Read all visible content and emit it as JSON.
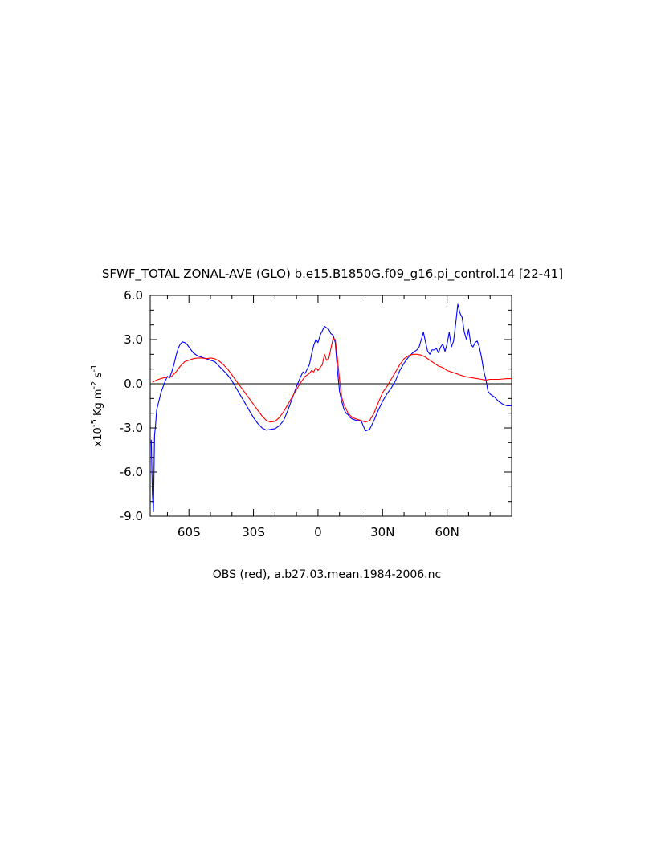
{
  "chart_data": {
    "type": "line",
    "title": "SFWF_TOTAL ZONAL-AVE (GLO) b.e15.B1850G.f09_g16.pi_control.14 [22-41]",
    "xlabel": "OBS (red), a.b27.03.mean.1984-2006.nc",
    "ylabel_prefix": "x10",
    "ylabel_exp": "-5",
    "ylabel_unit1": " Kg m",
    "ylabel_exp2": "-2",
    "ylabel_unit2": " s",
    "ylabel_exp3": "-1",
    "xlim": [
      -78,
      90
    ],
    "ylim": [
      -9,
      6
    ],
    "x_ticks": [
      {
        "value": -60,
        "label": "60S"
      },
      {
        "value": -30,
        "label": "30S"
      },
      {
        "value": 0,
        "label": "0"
      },
      {
        "value": 30,
        "label": "30N"
      },
      {
        "value": 60,
        "label": "60N"
      }
    ],
    "y_ticks": [
      {
        "value": 6,
        "label": "6.0"
      },
      {
        "value": 3,
        "label": "3.0"
      },
      {
        "value": 0,
        "label": "0.0"
      },
      {
        "value": -3,
        "label": "-3.0"
      },
      {
        "value": -6,
        "label": "-6.0"
      },
      {
        "value": -9,
        "label": "-9.0"
      }
    ],
    "zero_line": true,
    "series": [
      {
        "color": "#0000ff",
        "x": [
          -77.5,
          -77,
          -76.5,
          -76,
          -75.5,
          -75,
          -74,
          -73,
          -72,
          -71,
          -70,
          -69,
          -68,
          -67,
          -66,
          -65,
          -64,
          -63,
          -62,
          -61,
          -60,
          -59,
          -58,
          -56,
          -54,
          -52,
          -50,
          -48,
          -46,
          -44,
          -42,
          -40,
          -38,
          -36,
          -34,
          -32,
          -30,
          -28,
          -26,
          -24,
          -22,
          -20,
          -18,
          -16,
          -14,
          -12,
          -10,
          -8,
          -7,
          -6,
          -5,
          -4,
          -3,
          -2,
          -1,
          0,
          1,
          2,
          3,
          4,
          5,
          6,
          7,
          8,
          9,
          10,
          11,
          12,
          13,
          14,
          15,
          16,
          18,
          20,
          22,
          24,
          26,
          28,
          30,
          32,
          34,
          36,
          38,
          40,
          42,
          44,
          46,
          47,
          48,
          49,
          50,
          51,
          52,
          53,
          54,
          55,
          56,
          57,
          58,
          59,
          60,
          61,
          62,
          63,
          64,
          65,
          66,
          67,
          68,
          69,
          70,
          71,
          72,
          73,
          74,
          75,
          76,
          77,
          78,
          79,
          80,
          82,
          84,
          86,
          88,
          90
        ],
        "y": [
          -3.8,
          -7.5,
          -8.7,
          -3.5,
          -2.8,
          -1.8,
          -1.2,
          -0.6,
          -0.2,
          0.2,
          0.5,
          0.4,
          0.8,
          1.3,
          1.9,
          2.4,
          2.7,
          2.85,
          2.8,
          2.7,
          2.5,
          2.3,
          2.1,
          1.9,
          1.8,
          1.7,
          1.6,
          1.5,
          1.2,
          0.9,
          0.6,
          0.2,
          -0.3,
          -0.8,
          -1.3,
          -1.8,
          -2.3,
          -2.7,
          -3.0,
          -3.15,
          -3.1,
          -3.05,
          -2.85,
          -2.5,
          -1.8,
          -1.0,
          -0.2,
          0.5,
          0.8,
          0.7,
          1.0,
          1.3,
          2.0,
          2.6,
          3.0,
          2.8,
          3.3,
          3.6,
          3.9,
          3.8,
          3.7,
          3.4,
          3.3,
          2.8,
          1.0,
          -0.5,
          -1.2,
          -1.7,
          -2.0,
          -2.1,
          -2.3,
          -2.4,
          -2.5,
          -2.5,
          -3.2,
          -3.1,
          -2.5,
          -1.8,
          -1.2,
          -0.7,
          -0.3,
          0.2,
          0.9,
          1.4,
          1.8,
          2.1,
          2.3,
          2.5,
          3.0,
          3.5,
          2.8,
          2.2,
          2.0,
          2.3,
          2.3,
          2.4,
          2.1,
          2.5,
          2.7,
          2.2,
          2.7,
          3.5,
          2.5,
          2.9,
          4.1,
          5.4,
          4.8,
          4.5,
          3.5,
          3.0,
          3.7,
          2.7,
          2.5,
          2.8,
          2.9,
          2.5,
          1.8,
          0.9,
          0.3,
          -0.5,
          -0.7,
          -0.9,
          -1.2,
          -1.4,
          -1.5,
          -1.5
        ]
      },
      {
        "color": "#ff0000",
        "x": [
          -77,
          -75,
          -72,
          -70,
          -68,
          -66,
          -64,
          -62,
          -60,
          -58,
          -56,
          -54,
          -52,
          -50,
          -48,
          -46,
          -44,
          -42,
          -40,
          -38,
          -36,
          -34,
          -32,
          -30,
          -28,
          -26,
          -24,
          -22,
          -20,
          -18,
          -16,
          -14,
          -12,
          -10,
          -8,
          -6,
          -4,
          -3,
          -2,
          -1,
          0,
          1,
          2,
          3,
          4,
          5,
          6,
          7,
          8,
          9,
          10,
          11,
          12,
          13,
          14,
          16,
          18,
          20,
          22,
          24,
          26,
          28,
          30,
          32,
          34,
          36,
          38,
          40,
          42,
          44,
          46,
          48,
          50,
          52,
          54,
          56,
          58,
          60,
          62,
          64,
          66,
          68,
          70,
          72,
          74,
          76,
          78,
          80,
          84,
          88,
          90
        ],
        "y": [
          0.1,
          0.25,
          0.4,
          0.45,
          0.5,
          0.8,
          1.2,
          1.5,
          1.6,
          1.7,
          1.75,
          1.75,
          1.7,
          1.75,
          1.7,
          1.55,
          1.3,
          1.0,
          0.6,
          0.2,
          -0.2,
          -0.6,
          -1.0,
          -1.4,
          -1.8,
          -2.2,
          -2.5,
          -2.6,
          -2.55,
          -2.3,
          -1.9,
          -1.4,
          -0.9,
          -0.4,
          0.1,
          0.5,
          0.7,
          0.9,
          0.8,
          1.1,
          0.9,
          1.1,
          1.3,
          2.0,
          1.6,
          1.7,
          2.4,
          3.1,
          3.0,
          1.8,
          0.3,
          -0.9,
          -1.4,
          -1.7,
          -2.0,
          -2.3,
          -2.4,
          -2.5,
          -2.6,
          -2.5,
          -2.0,
          -1.3,
          -0.6,
          -0.2,
          0.3,
          0.8,
          1.3,
          1.7,
          1.9,
          2.0,
          2.0,
          1.95,
          1.8,
          1.6,
          1.4,
          1.2,
          1.1,
          0.9,
          0.8,
          0.7,
          0.6,
          0.5,
          0.45,
          0.4,
          0.35,
          0.3,
          0.25,
          0.3,
          0.3,
          0.35,
          0.35
        ]
      }
    ]
  }
}
